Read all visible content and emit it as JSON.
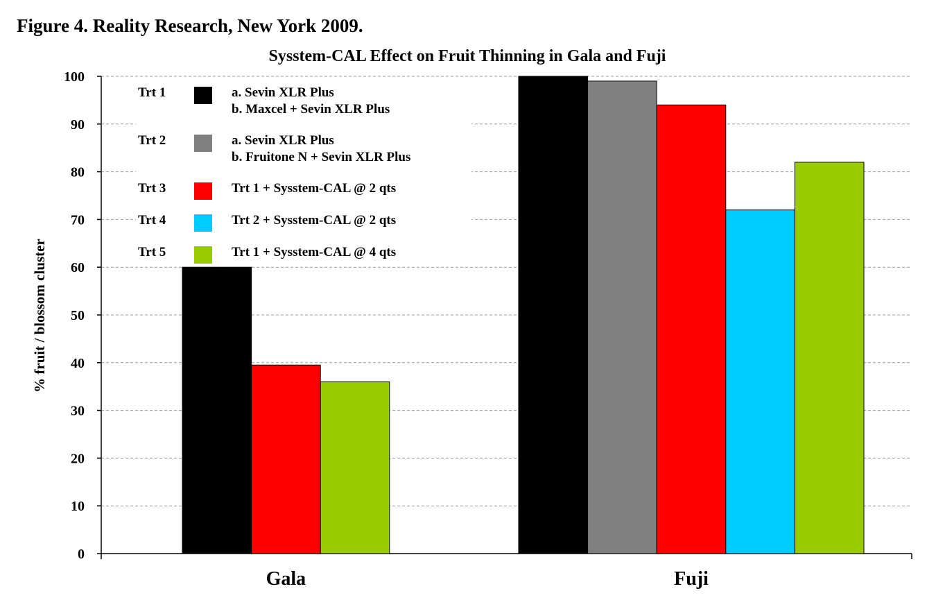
{
  "figure_label": "Figure 4. Reality Research, New York 2009.",
  "chart_data": {
    "type": "bar",
    "title": "Sysstem-CAL Effect on Fruit Thinning in Gala and Fuji",
    "xlabel": "",
    "ylabel": "% fruit / blossom cluster",
    "ylim": [
      0,
      100
    ],
    "yticks": [
      0,
      10,
      20,
      30,
      40,
      50,
      60,
      70,
      80,
      90,
      100
    ],
    "grid": true,
    "legend_position": "top-left",
    "categories": [
      "Gala",
      "Fuji"
    ],
    "series": [
      {
        "name": "Trt 1",
        "lines": [
          "a. Sevin XLR Plus",
          "b. Maxcel + Sevin XLR Plus"
        ],
        "color": "#000000",
        "values": [
          60,
          100
        ]
      },
      {
        "name": "Trt 2",
        "lines": [
          "a. Sevin XLR Plus",
          "b. Fruitone N + Sevin XLR Plus"
        ],
        "color": "#808080",
        "values": [
          null,
          99
        ]
      },
      {
        "name": "Trt 3",
        "lines": [
          "Trt 1 + Sysstem-CAL @ 2 qts"
        ],
        "color": "#ff0000",
        "values": [
          39.5,
          94
        ]
      },
      {
        "name": "Trt 4",
        "lines": [
          "Trt 2 + Sysstem-CAL @ 2 qts"
        ],
        "color": "#00ccff",
        "values": [
          null,
          72
        ]
      },
      {
        "name": "Trt 5",
        "lines": [
          "Trt 1 + Sysstem-CAL @ 4 qts"
        ],
        "color": "#99cc00",
        "values": [
          36,
          82
        ]
      }
    ]
  }
}
